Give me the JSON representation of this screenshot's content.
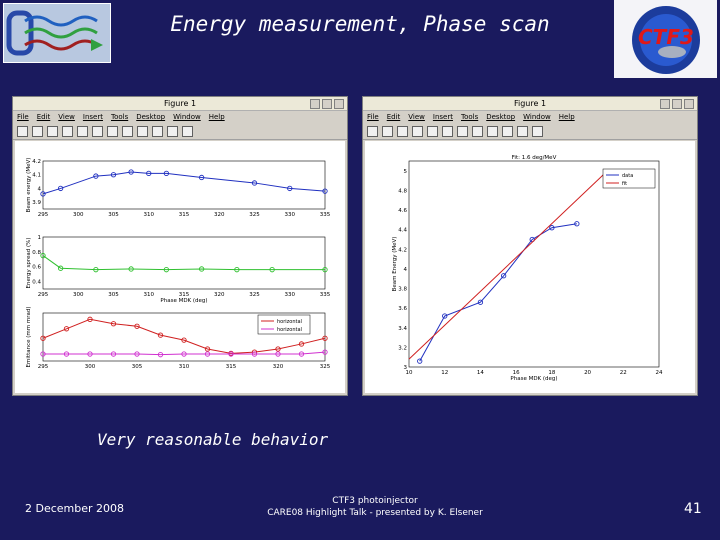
{
  "slide": {
    "title": "Energy measurement, Phase scan",
    "caption": "Very reasonable behavior",
    "footer_date": "2 December 2008",
    "footer_line1": "CTF3 photoinjector",
    "footer_line2": "CARE08 Highlight Talk - presented by K. Elsener",
    "page_number": "41",
    "logo_right_text": "CTF3"
  },
  "figure_windows": [
    {
      "title": "Figure 1",
      "menu": [
        "File",
        "Edit",
        "View",
        "Insert",
        "Tools",
        "Desktop",
        "Window",
        "Help"
      ]
    },
    {
      "title": "Figure 1",
      "menu": [
        "File",
        "Edit",
        "View",
        "Insert",
        "Tools",
        "Desktop",
        "Window",
        "Help"
      ]
    }
  ],
  "colors": {
    "background": "#1a1a5e",
    "blue_series": "#2030c0",
    "green_series": "#30c030",
    "red_series": "#d02020",
    "magenta_series": "#d030d0"
  },
  "chart_data": [
    {
      "type": "line",
      "panel": "top-left",
      "ylabel": "Beam energy (MeV)",
      "x": [
        295,
        300,
        305,
        310,
        315,
        320,
        325,
        330,
        335
      ],
      "x_ticks": [
        "295",
        "300",
        "305",
        "310",
        "315",
        "320",
        "325",
        "330",
        "335"
      ],
      "y_ticks": [
        "4.2",
        "4.1",
        "4",
        "3.9"
      ],
      "ylim": [
        3.85,
        4.2
      ],
      "series": [
        {
          "color": "blue_series",
          "x": [
            295,
            297.5,
            302.5,
            305,
            307.5,
            310,
            312.5,
            317.5,
            325,
            330,
            335
          ],
          "y": [
            3.96,
            4.0,
            4.09,
            4.1,
            4.12,
            4.11,
            4.11,
            4.08,
            4.04,
            4.0,
            3.98
          ]
        }
      ]
    },
    {
      "type": "line",
      "panel": "middle-left",
      "ylabel": "Energy spread (%)",
      "xlabel": "Phase MDK (deg)",
      "x_ticks": [
        "295",
        "300",
        "305",
        "310",
        "315",
        "320",
        "325",
        "330",
        "335"
      ],
      "y_ticks": [
        "1",
        "0.8",
        "0.6",
        "0.4"
      ],
      "ylim": [
        0.3,
        1.0
      ],
      "series": [
        {
          "color": "green_series",
          "x": [
            295,
            297.5,
            302.5,
            307.5,
            312.5,
            317.5,
            322.5,
            327.5,
            335
          ],
          "y": [
            0.75,
            0.58,
            0.56,
            0.57,
            0.56,
            0.57,
            0.56,
            0.56,
            0.56
          ]
        }
      ]
    },
    {
      "type": "line",
      "panel": "bottom-left",
      "ylabel": "Emittance (mm mrad)",
      "x_ticks": [
        "295",
        "300",
        "305",
        "310",
        "315",
        "320",
        "325"
      ],
      "legend": [
        "horizontal",
        "horizontal"
      ],
      "series": [
        {
          "color": "red_series",
          "x": [
            295,
            297.5,
            300,
            302.5,
            305,
            307.5,
            310,
            312.5,
            315,
            317.5,
            320,
            322.5,
            325
          ],
          "y": [
            6.5,
            8.0,
            9.5,
            8.8,
            8.4,
            7.0,
            6.2,
            4.8,
            4.1,
            4.3,
            4.8,
            5.6,
            6.5
          ]
        },
        {
          "color": "magenta_series",
          "x": [
            295,
            297.5,
            300,
            302.5,
            305,
            307.5,
            310,
            312.5,
            315,
            317.5,
            320,
            322.5,
            325
          ],
          "y": [
            4.0,
            4.0,
            4.0,
            4.0,
            4.0,
            3.9,
            4.0,
            4.0,
            4.0,
            4.0,
            4.0,
            4.0,
            4.3
          ]
        }
      ]
    },
    {
      "type": "line",
      "panel": "right",
      "title": "Fit: 1.6 deg/MeV",
      "ylabel": "Beam Energy (MeV)",
      "xlabel": "Phase MDK (deg)",
      "x_ticks": [
        "10",
        "12",
        "14",
        "16",
        "18",
        "20",
        "22",
        "24"
      ],
      "y_ticks": [
        "5",
        "4.8",
        "4.6",
        "4.4",
        "4.2",
        "4",
        "3.8",
        "3.6",
        "3.4",
        "3.2",
        "3"
      ],
      "xlim": [
        10,
        24
      ],
      "ylim": [
        3.0,
        5.1
      ],
      "legend": [
        "data",
        "fit"
      ],
      "series": [
        {
          "name": "data",
          "color": "blue_series",
          "x": [
            10.6,
            12,
            14,
            15.3,
            16.9,
            18,
            19.4
          ],
          "y": [
            3.06,
            3.52,
            3.66,
            3.93,
            4.3,
            4.42,
            4.46
          ]
        },
        {
          "name": "fit",
          "color": "red_series",
          "x": [
            10,
            21
          ],
          "y": [
            3.08,
            4.98
          ]
        }
      ]
    }
  ]
}
